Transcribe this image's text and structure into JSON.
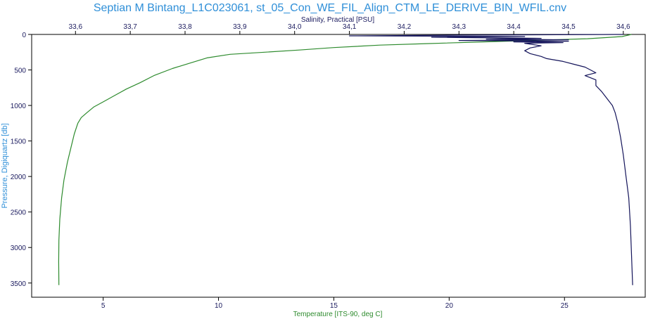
{
  "chart_data": {
    "type": "line",
    "title": "Septian M Bintang_L1C023061, st_05_Con_WE_FIL_Align_CTM_LE_DERIVE_BIN_WFIL.cnv",
    "y_axis": {
      "label": "Pressure, Digiquartz [db]",
      "range": [
        0,
        3700
      ],
      "inverted": true,
      "ticks": [
        0,
        500,
        1000,
        1500,
        2000,
        2500,
        3000,
        3500
      ]
    },
    "x_axis_top": {
      "label": "Salinity, Practical [PSU]",
      "range": [
        33.52,
        34.64
      ],
      "ticks": [
        33.6,
        33.7,
        33.8,
        33.9,
        34.0,
        34.1,
        34.2,
        34.3,
        34.4,
        34.5,
        34.6
      ]
    },
    "x_axis_bottom": {
      "label": "Temperature [ITS-90, deg C]",
      "range": [
        1.9,
        28.5
      ],
      "ticks": [
        5,
        10,
        15,
        20,
        25
      ]
    },
    "grid": false,
    "series": [
      {
        "name": "Temperature",
        "axis": "bottom",
        "color": "#2e8b2e",
        "points": [
          [
            27.9,
            0
          ],
          [
            27.5,
            30
          ],
          [
            26.0,
            60
          ],
          [
            22.0,
            100
          ],
          [
            19.0,
            130
          ],
          [
            17.0,
            150
          ],
          [
            15.0,
            185
          ],
          [
            13.5,
            220
          ],
          [
            12.0,
            250
          ],
          [
            10.5,
            280
          ],
          [
            9.5,
            330
          ],
          [
            8.8,
            400
          ],
          [
            8.0,
            480
          ],
          [
            7.2,
            580
          ],
          [
            6.6,
            680
          ],
          [
            6.0,
            770
          ],
          [
            5.5,
            860
          ],
          [
            5.0,
            950
          ],
          [
            4.6,
            1020
          ],
          [
            4.3,
            1100
          ],
          [
            4.05,
            1170
          ],
          [
            3.9,
            1250
          ],
          [
            3.75,
            1400
          ],
          [
            3.6,
            1600
          ],
          [
            3.45,
            1800
          ],
          [
            3.3,
            2050
          ],
          [
            3.2,
            2300
          ],
          [
            3.12,
            2600
          ],
          [
            3.08,
            2900
          ],
          [
            3.07,
            3200
          ],
          [
            3.08,
            3530
          ]
        ]
      },
      {
        "name": "Salinity",
        "axis": "top",
        "color": "#14145a",
        "points": [
          [
            34.6,
            0
          ],
          [
            34.3,
            10
          ],
          [
            34.1,
            20
          ],
          [
            34.42,
            30
          ],
          [
            34.25,
            40
          ],
          [
            34.45,
            55
          ],
          [
            34.35,
            65
          ],
          [
            34.5,
            75
          ],
          [
            34.3,
            85
          ],
          [
            34.5,
            95
          ],
          [
            34.4,
            105
          ],
          [
            34.49,
            115
          ],
          [
            34.42,
            125
          ],
          [
            34.45,
            160
          ],
          [
            34.43,
            190
          ],
          [
            34.42,
            230
          ],
          [
            34.43,
            270
          ],
          [
            34.45,
            310
          ],
          [
            34.46,
            340
          ],
          [
            34.49,
            380
          ],
          [
            34.51,
            420
          ],
          [
            34.53,
            460
          ],
          [
            34.54,
            500
          ],
          [
            34.55,
            540
          ],
          [
            34.53,
            580
          ],
          [
            34.55,
            640
          ],
          [
            34.55,
            720
          ],
          [
            34.56,
            800
          ],
          [
            34.57,
            900
          ],
          [
            34.58,
            1000
          ],
          [
            34.585,
            1100
          ],
          [
            34.59,
            1250
          ],
          [
            34.595,
            1450
          ],
          [
            34.6,
            1700
          ],
          [
            34.605,
            2000
          ],
          [
            34.61,
            2300
          ],
          [
            34.613,
            2700
          ],
          [
            34.615,
            3100
          ],
          [
            34.617,
            3530
          ]
        ]
      }
    ]
  }
}
